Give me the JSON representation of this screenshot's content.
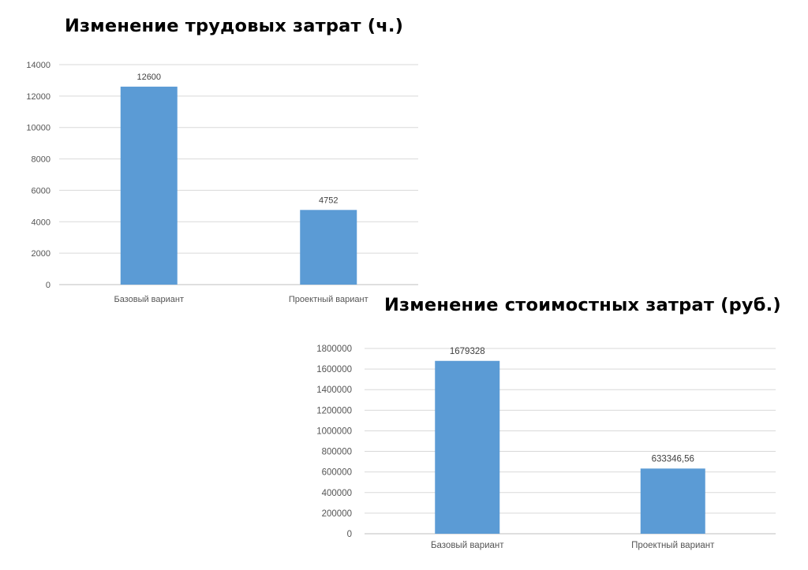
{
  "chart_data": [
    {
      "type": "bar",
      "title": "Изменение трудовых затрат (ч.)",
      "categories": [
        "Базовый вариант",
        "Проектный вариант"
      ],
      "values": [
        12600,
        4752
      ],
      "data_labels": [
        "12600",
        "4752"
      ],
      "yticks": [
        "0",
        "2000",
        "4000",
        "6000",
        "8000",
        "10000",
        "12000",
        "14000"
      ],
      "ylim": [
        0,
        14000
      ],
      "xlabel": "",
      "ylabel": "",
      "grid": true,
      "legend": "none",
      "bar_color": "#5b9bd5"
    },
    {
      "type": "bar",
      "title": "Изменение стоимостных затрат (руб.)",
      "categories": [
        "Базовый вариант",
        "Проектный вариант"
      ],
      "values": [
        1679328,
        633346.56
      ],
      "data_labels": [
        "1679328",
        "633346,56"
      ],
      "yticks": [
        "0",
        "200000",
        "400000",
        "600000",
        "800000",
        "1000000",
        "1200000",
        "1400000",
        "1600000",
        "1800000"
      ],
      "ylim": [
        0,
        1800000
      ],
      "xlabel": "",
      "ylabel": "",
      "grid": true,
      "legend": "none",
      "bar_color": "#5b9bd5"
    }
  ]
}
